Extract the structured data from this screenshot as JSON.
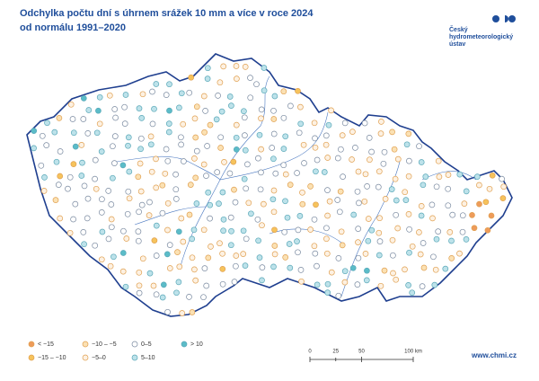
{
  "header": {
    "title_lines": [
      "Odchylka počtu dní s úhrnem srážek 10 mm a více v roce 2024",
      "od normálu 1991–2020"
    ]
  },
  "logo": {
    "lines": [
      "Český",
      "hydrometeorologický",
      "ústav"
    ]
  },
  "legend": {
    "items": [
      {
        "label": "< −15",
        "color": "#ee9b5a"
      },
      {
        "label": "−15 – −10",
        "color": "#f6c35c"
      },
      {
        "label": "−10 – −5",
        "color": "#fbe1b3"
      },
      {
        "label": "−5–0",
        "color": "#fdf1e2"
      },
      {
        "label": "0–5",
        "color": "#ffffff"
      },
      {
        "label": "5–10",
        "color": "#bde2ea"
      },
      {
        "label": "> 10",
        "color": "#5bbcc8"
      }
    ]
  },
  "scale": {
    "labels": [
      "0",
      "25",
      "50",
      "100 km"
    ]
  },
  "footer": {
    "url": "www.chmi.cz"
  }
}
